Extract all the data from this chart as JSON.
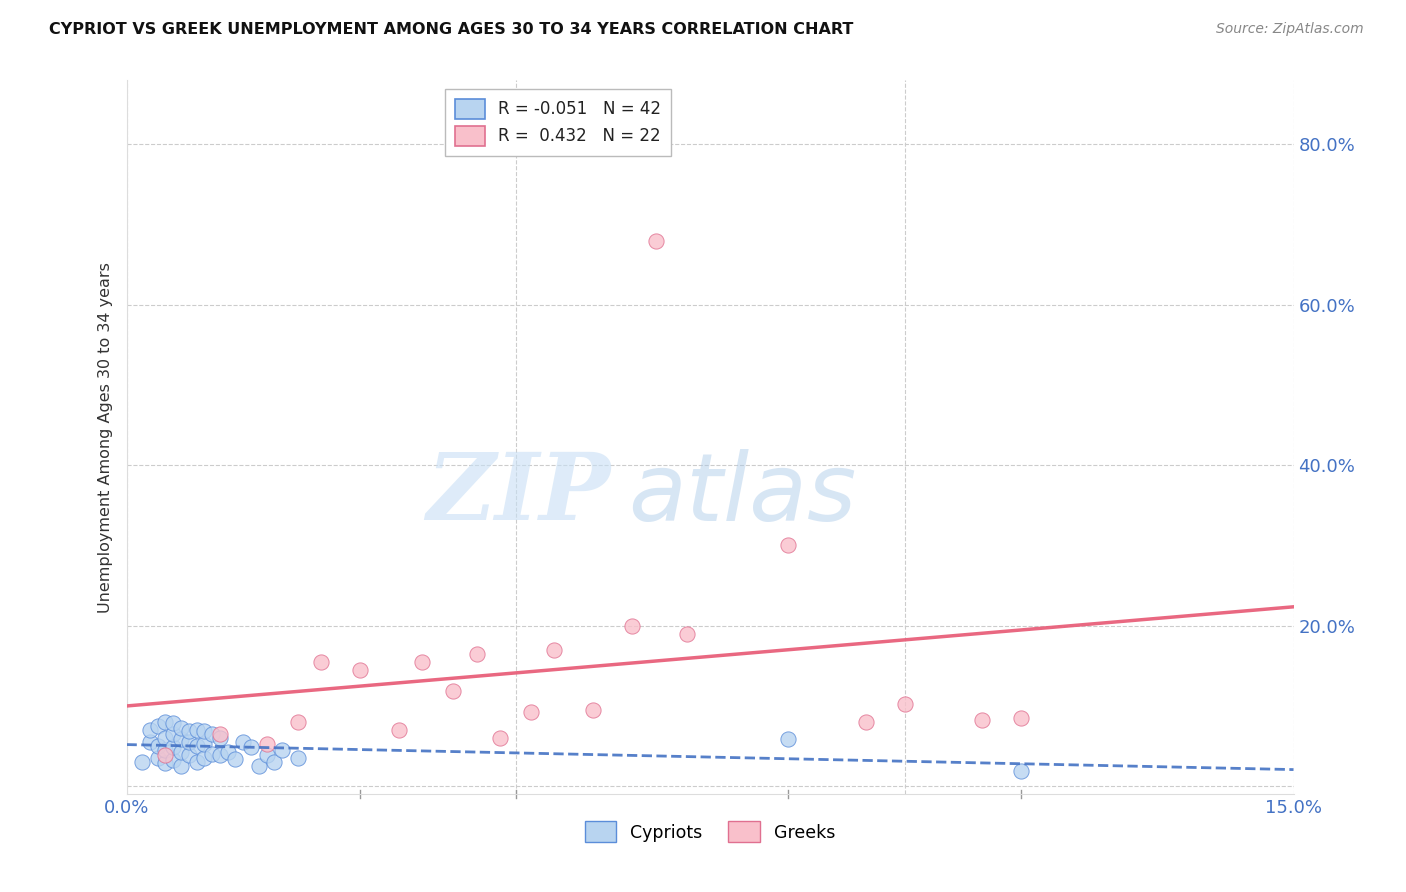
{
  "title": "CYPRIOT VS GREEK UNEMPLOYMENT AMONG AGES 30 TO 34 YEARS CORRELATION CHART",
  "source": "Source: ZipAtlas.com",
  "ylabel": "Unemployment Among Ages 30 to 34 years",
  "legend_cypriots": "Cypriots",
  "legend_greeks": "Greeks",
  "watermark_zip": "ZIP",
  "watermark_atlas": "atlas",
  "xlim": [
    0.0,
    0.15
  ],
  "ylim": [
    -0.01,
    0.88
  ],
  "ytick_positions": [
    0.0,
    0.2,
    0.4,
    0.6,
    0.8
  ],
  "ytick_labels": [
    "",
    "20.0%",
    "40.0%",
    "60.0%",
    "80.0%"
  ],
  "xtick_positions": [
    0.0,
    0.05,
    0.1,
    0.15
  ],
  "xtick_labels": [
    "0.0%",
    "",
    "",
    "15.0%"
  ],
  "cypriot_fill": "#b8d4f0",
  "cypriot_edge": "#5b8dd9",
  "greek_fill": "#f9c0cb",
  "greek_edge": "#e07090",
  "cypriot_line_color": "#4472c4",
  "greek_line_color": "#e8607a",
  "R_cypriot": -0.051,
  "N_cypriot": 42,
  "R_greek": 0.432,
  "N_greek": 22,
  "cypriot_x": [
    0.002,
    0.003,
    0.003,
    0.004,
    0.004,
    0.004,
    0.005,
    0.005,
    0.005,
    0.005,
    0.006,
    0.006,
    0.006,
    0.006,
    0.007,
    0.007,
    0.007,
    0.007,
    0.008,
    0.008,
    0.008,
    0.009,
    0.009,
    0.009,
    0.01,
    0.01,
    0.01,
    0.011,
    0.011,
    0.012,
    0.012,
    0.013,
    0.014,
    0.015,
    0.016,
    0.017,
    0.018,
    0.019,
    0.02,
    0.022,
    0.085,
    0.115
  ],
  "cypriot_y": [
    0.03,
    0.055,
    0.07,
    0.035,
    0.05,
    0.075,
    0.028,
    0.045,
    0.06,
    0.08,
    0.032,
    0.048,
    0.065,
    0.078,
    0.025,
    0.042,
    0.058,
    0.072,
    0.038,
    0.055,
    0.068,
    0.03,
    0.05,
    0.07,
    0.035,
    0.052,
    0.068,
    0.04,
    0.065,
    0.038,
    0.06,
    0.042,
    0.033,
    0.055,
    0.048,
    0.025,
    0.038,
    0.03,
    0.045,
    0.035,
    0.058,
    0.018
  ],
  "greek_x": [
    0.005,
    0.012,
    0.018,
    0.022,
    0.025,
    0.03,
    0.035,
    0.038,
    0.042,
    0.045,
    0.048,
    0.052,
    0.055,
    0.06,
    0.065,
    0.068,
    0.072,
    0.085,
    0.095,
    0.1,
    0.11,
    0.115
  ],
  "greek_y": [
    0.038,
    0.065,
    0.052,
    0.08,
    0.155,
    0.145,
    0.07,
    0.155,
    0.118,
    0.165,
    0.06,
    0.092,
    0.17,
    0.095,
    0.2,
    0.68,
    0.19,
    0.3,
    0.08,
    0.102,
    0.082,
    0.085
  ],
  "grid_color": "#cccccc",
  "tick_color": "#4472c4",
  "title_color": "#111111",
  "source_color": "#888888",
  "bg_color": "#ffffff"
}
